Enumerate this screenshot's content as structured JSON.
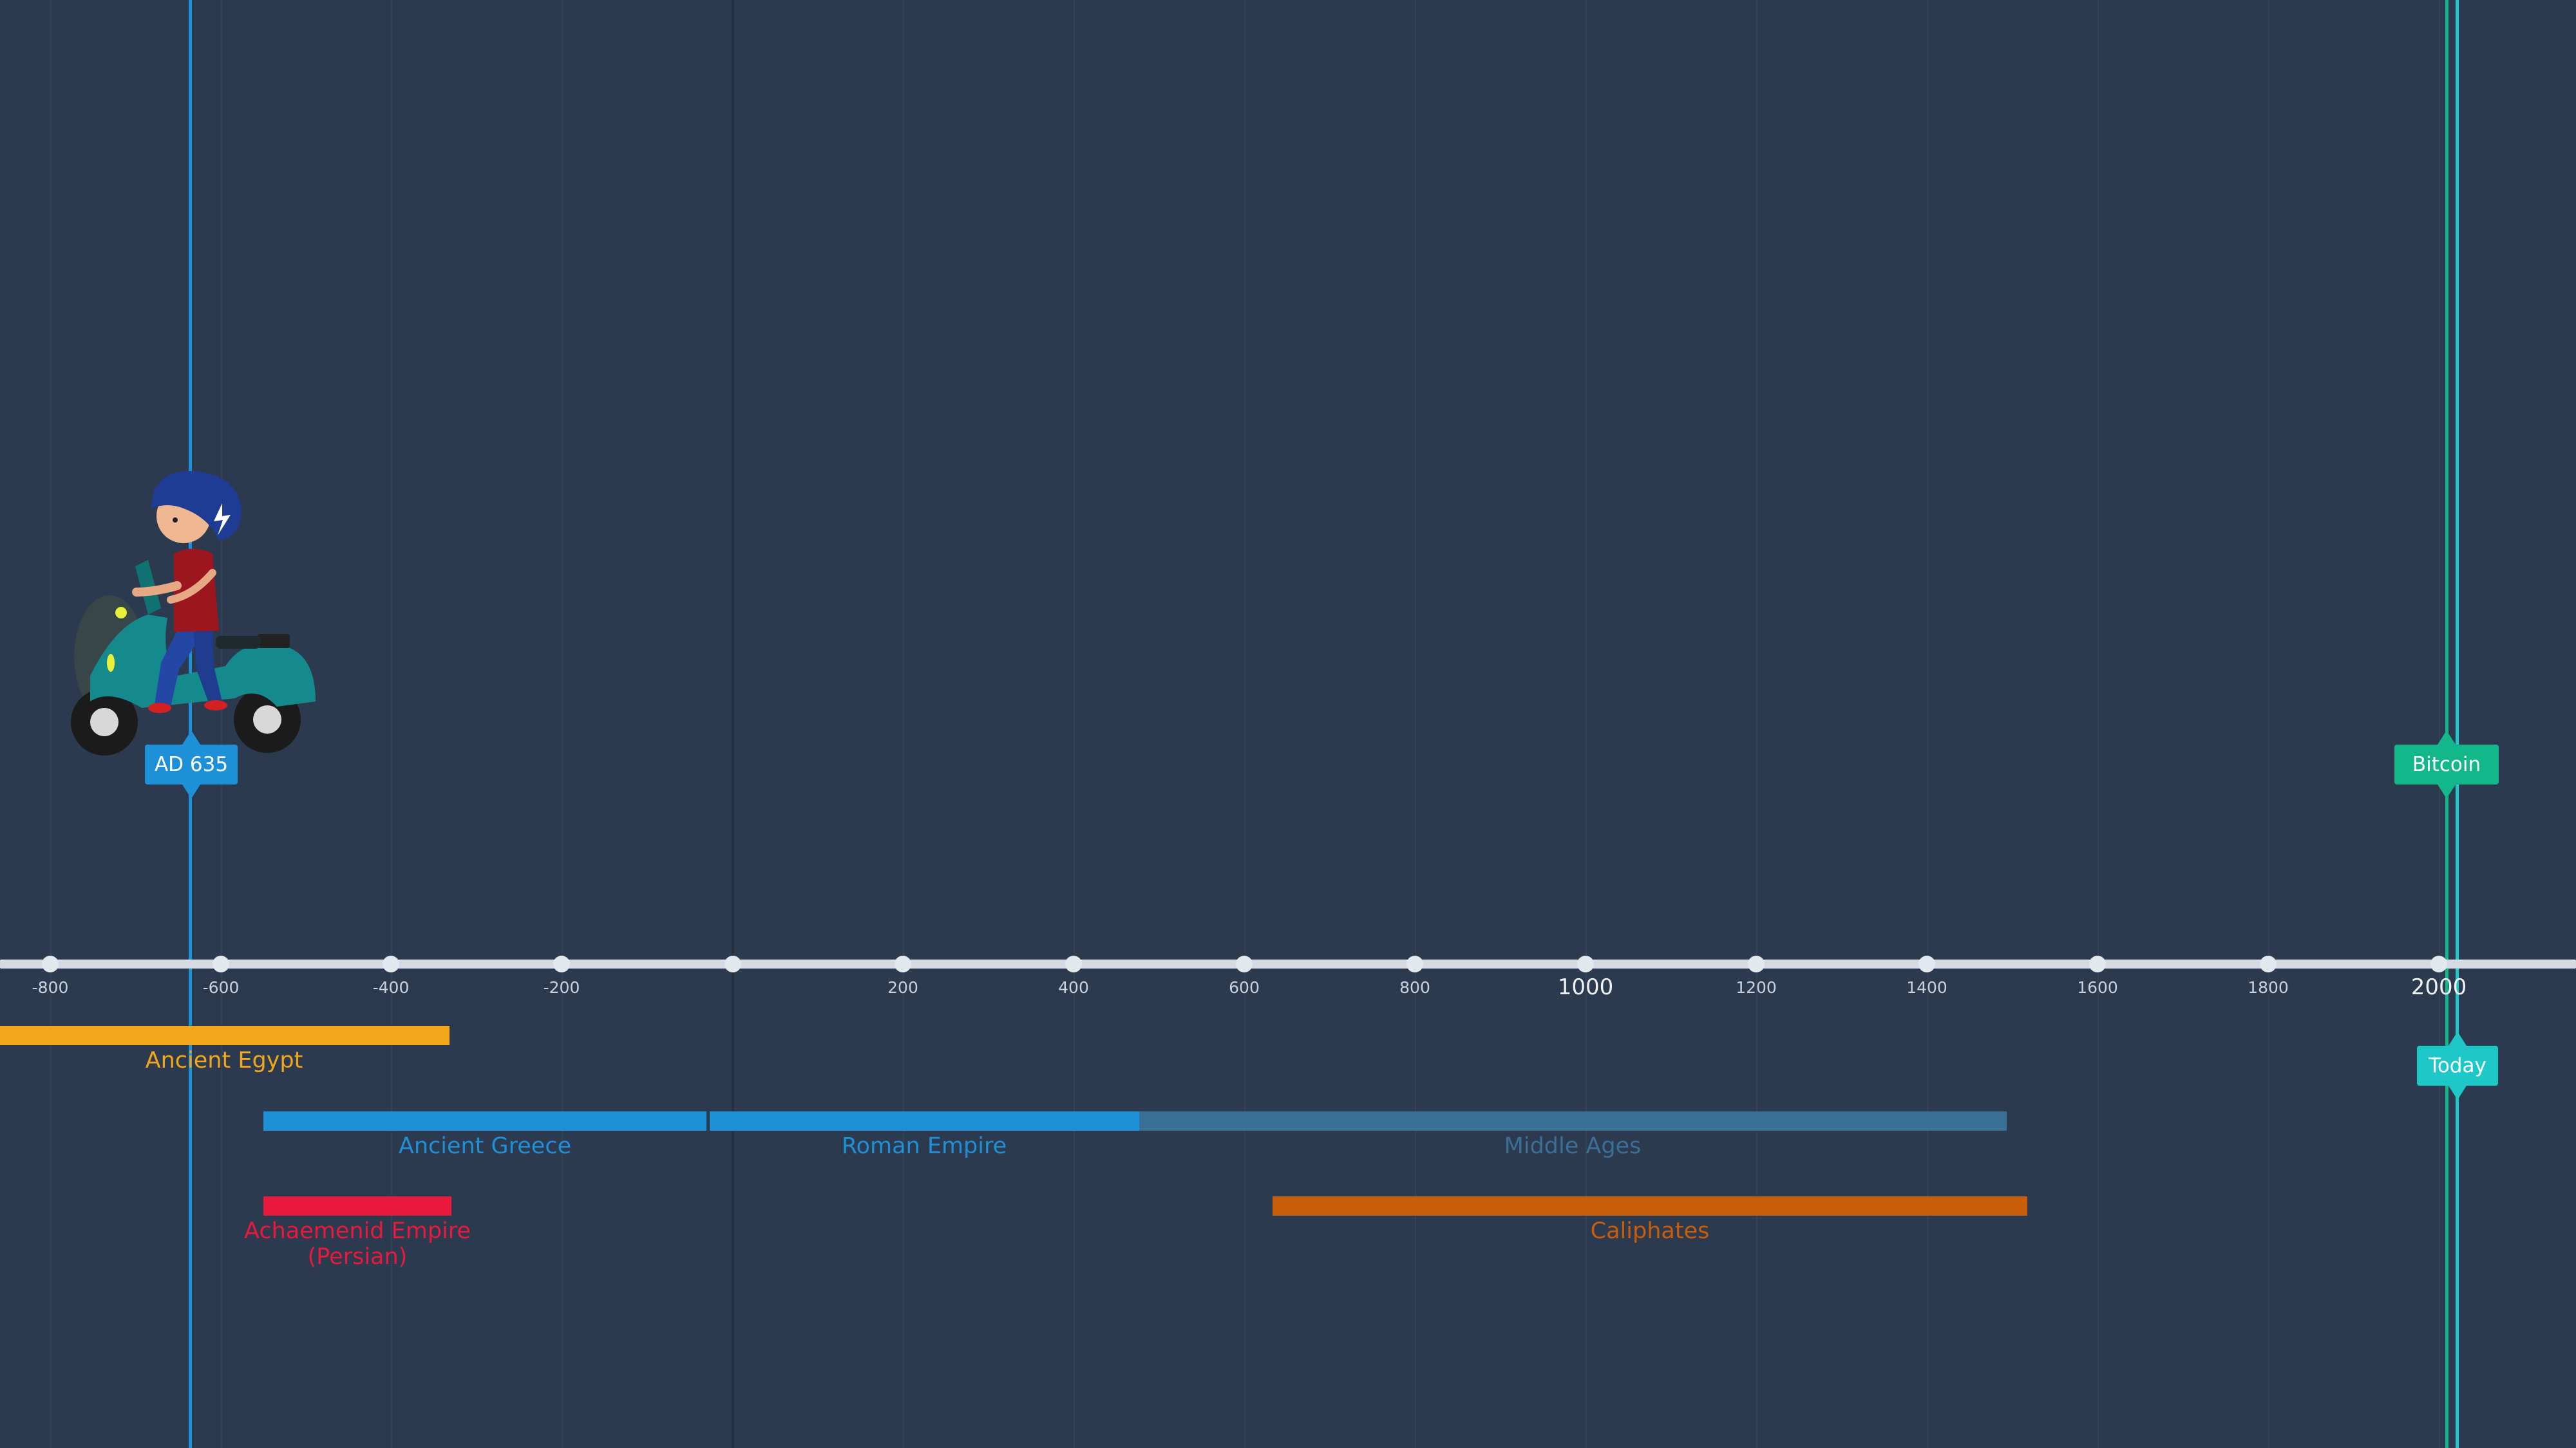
{
  "current_marker": {
    "label": "AD 635",
    "color": "#1e90d8"
  },
  "event_marker": {
    "label": "Bitcoin",
    "color": "#12b88a"
  },
  "today_marker": {
    "label": "Today",
    "color": "#1ec8c8"
  },
  "axis": {
    "ticks": [
      "-800",
      "-600",
      "-400",
      "-200",
      "200",
      "400",
      "600",
      "800",
      "1000",
      "1200",
      "1400",
      "1600",
      "1800",
      "2000"
    ]
  },
  "periods": [
    {
      "label": "Ancient Egypt",
      "color": "#f2a71b"
    },
    {
      "label": "Ancient Greece",
      "color": "#1e90d8"
    },
    {
      "label": "Roman Empire",
      "color": "#1e90d8"
    },
    {
      "label": "Middle Ages",
      "color": "#3a6f96"
    },
    {
      "label": "Achaemenid Empire",
      "label2": "(Persian)",
      "color": "#e8193c"
    },
    {
      "label": "Caliphates",
      "color": "#c85d0a"
    }
  ],
  "avatar": {
    "icon": "scooter-rider-icon"
  }
}
